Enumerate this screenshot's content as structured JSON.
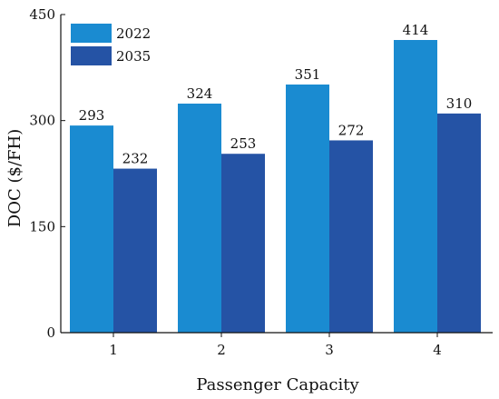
{
  "chart_data": {
    "type": "bar",
    "categories": [
      "1",
      "2",
      "3",
      "4"
    ],
    "series": [
      {
        "name": "2022",
        "values": [
          293,
          324,
          351,
          414
        ],
        "color": "#1a8bd1"
      },
      {
        "name": "2035",
        "values": [
          232,
          253,
          272,
          310
        ],
        "color": "#2553a5"
      }
    ],
    "data_labels": [
      [
        "293",
        "324",
        "351",
        "414"
      ],
      [
        "232",
        "253",
        "272",
        "310"
      ]
    ],
    "xlabel": "Passenger Capacity",
    "ylabel": "DOC ($/FH)",
    "ylim": [
      0,
      450
    ],
    "yticks": [
      "0",
      "150",
      "300",
      "450"
    ],
    "legend": {
      "position": "top-left",
      "entries": [
        "2022",
        "2035"
      ]
    },
    "grid": false
  }
}
